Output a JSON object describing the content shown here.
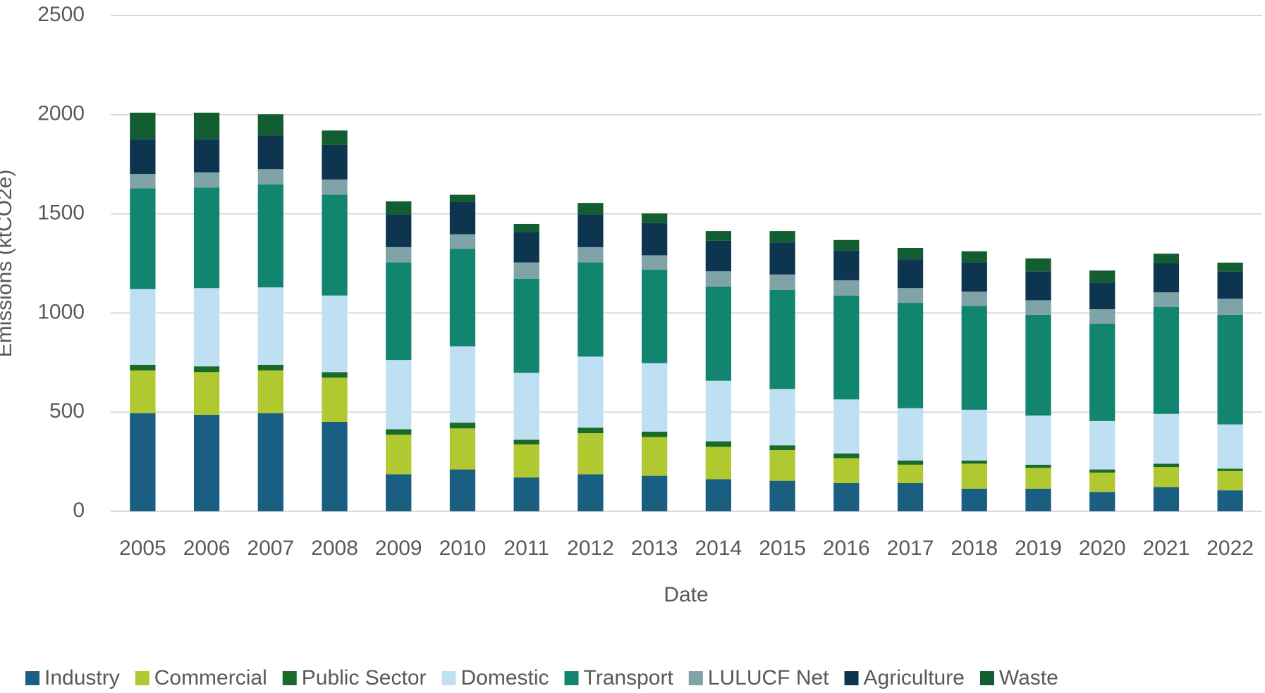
{
  "chart_data": {
    "type": "stacked_bar",
    "y_label": "Emissions (ktCO2e)",
    "x_label": "Date",
    "categories": [
      "2005",
      "2006",
      "2007",
      "2008",
      "2009",
      "2010",
      "2011",
      "2012",
      "2013",
      "2014",
      "2015",
      "2016",
      "2017",
      "2018",
      "2019",
      "2020",
      "2021",
      "2022"
    ],
    "ylim": [
      0,
      2500
    ],
    "yticks": [
      0,
      500,
      1000,
      1500,
      2000,
      2500
    ],
    "grid": true,
    "legend": "bottom",
    "series": [
      {
        "name": "Industry",
        "color": "#1a5e82",
        "values": [
          495,
          487,
          495,
          451,
          187,
          211,
          171,
          187,
          179,
          162,
          154,
          142,
          142,
          114,
          114,
          97,
          122,
          106
        ]
      },
      {
        "name": "Commercial",
        "color": "#b0c930",
        "values": [
          215,
          215,
          215,
          223,
          199,
          207,
          166,
          207,
          195,
          163,
          155,
          126,
          93,
          126,
          105,
          98,
          101,
          97
        ]
      },
      {
        "name": "Public Sector",
        "color": "#1a6b2a",
        "values": [
          29,
          29,
          29,
          28,
          28,
          29,
          24,
          28,
          28,
          28,
          24,
          24,
          21,
          16,
          16,
          16,
          17,
          12
        ]
      },
      {
        "name": "Domestic",
        "color": "#bfe0f2",
        "values": [
          382,
          394,
          390,
          386,
          349,
          385,
          337,
          358,
          345,
          305,
          284,
          272,
          264,
          256,
          248,
          244,
          251,
          223
        ]
      },
      {
        "name": "Transport",
        "color": "#128570",
        "values": [
          507,
          507,
          519,
          508,
          492,
          492,
          475,
          475,
          471,
          475,
          499,
          524,
          531,
          523,
          508,
          491,
          540,
          553
        ]
      },
      {
        "name": "LULUCF Net",
        "color": "#7fa3a6",
        "values": [
          73,
          77,
          77,
          77,
          77,
          73,
          82,
          77,
          73,
          77,
          78,
          77,
          74,
          73,
          73,
          73,
          73,
          81
        ]
      },
      {
        "name": "Agriculture",
        "color": "#0d3550",
        "values": [
          175,
          167,
          171,
          174,
          166,
          162,
          154,
          166,
          162,
          154,
          162,
          150,
          146,
          147,
          146,
          134,
          146,
          138
        ]
      },
      {
        "name": "Waste",
        "color": "#135e30",
        "values": [
          134,
          134,
          106,
          73,
          65,
          37,
          40,
          57,
          49,
          49,
          57,
          53,
          57,
          56,
          65,
          61,
          49,
          44
        ]
      }
    ]
  }
}
